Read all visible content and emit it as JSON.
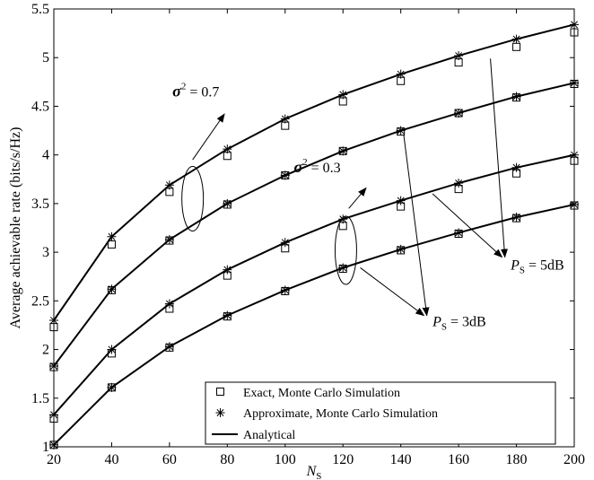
{
  "chart_data": {
    "type": "line",
    "title": "",
    "xlabel": "N",
    "xlabel_sub": "S",
    "ylabel": "Average achievable rate (bits/s/Hz)",
    "xlim": [
      20,
      200
    ],
    "ylim": [
      1,
      5.5
    ],
    "x_ticks": [
      "20",
      "40",
      "60",
      "80",
      "100",
      "120",
      "140",
      "160",
      "180",
      "200"
    ],
    "y_ticks": [
      "1",
      "1.5",
      "2",
      "2.5",
      "3",
      "3.5",
      "4",
      "4.5",
      "5",
      "5.5"
    ],
    "grid": false,
    "legend_position": "bottom-center",
    "x": [
      20,
      40,
      60,
      80,
      100,
      120,
      140,
      160,
      180,
      200
    ],
    "legend": [
      {
        "label": "Exact, Monte Carlo Simulation",
        "marker": "square"
      },
      {
        "label": "Approximate, Monte Carlo Simulation",
        "marker": "asterisk"
      },
      {
        "label": "Analytical",
        "marker": "line"
      }
    ],
    "curves": [
      {
        "exact": [
          2.23,
          3.08,
          3.62,
          3.99,
          4.3,
          4.55,
          4.76,
          4.95,
          5.11,
          5.26
        ],
        "approximate": [
          2.3,
          3.16,
          3.69,
          4.06,
          4.37,
          4.62,
          4.83,
          5.02,
          5.19,
          5.34
        ],
        "analytical": [
          2.3,
          3.16,
          3.69,
          4.06,
          4.37,
          4.62,
          4.83,
          5.02,
          5.19,
          5.34
        ]
      },
      {
        "exact": [
          1.82,
          2.61,
          3.12,
          3.49,
          3.79,
          4.04,
          4.24,
          4.43,
          4.59,
          4.73
        ],
        "approximate": [
          1.83,
          2.62,
          3.13,
          3.5,
          3.79,
          4.04,
          4.25,
          4.43,
          4.6,
          4.74
        ],
        "analytical": [
          1.83,
          2.62,
          3.13,
          3.5,
          3.79,
          4.04,
          4.25,
          4.43,
          4.6,
          4.74
        ]
      },
      {
        "exact": [
          1.29,
          1.96,
          2.42,
          2.76,
          3.04,
          3.27,
          3.47,
          3.65,
          3.81,
          3.94
        ],
        "approximate": [
          1.33,
          2.0,
          2.47,
          2.82,
          3.1,
          3.34,
          3.53,
          3.71,
          3.87,
          4.0
        ],
        "analytical": [
          1.33,
          2.0,
          2.47,
          2.82,
          3.1,
          3.34,
          3.53,
          3.71,
          3.87,
          4.0
        ]
      },
      {
        "exact": [
          1.02,
          1.61,
          2.02,
          2.34,
          2.6,
          2.83,
          3.02,
          3.19,
          3.35,
          3.48
        ],
        "approximate": [
          1.02,
          1.61,
          2.03,
          2.35,
          2.61,
          2.84,
          3.03,
          3.2,
          3.36,
          3.49
        ],
        "analytical": [
          1.02,
          1.61,
          2.03,
          2.35,
          2.61,
          2.84,
          3.03,
          3.2,
          3.36,
          3.49
        ]
      }
    ],
    "annotations": {
      "sigma_high": {
        "symbol": "σ",
        "sup": "2",
        "value": " = 0.7"
      },
      "sigma_low": {
        "symbol": "σ",
        "sup": "2",
        "value": " = 0.3"
      },
      "ps_high": {
        "symbol": "P",
        "sub": "S",
        "value": " = 5dB"
      },
      "ps_low": {
        "symbol": "P",
        "sub": "S",
        "value": " = 3dB"
      }
    }
  }
}
